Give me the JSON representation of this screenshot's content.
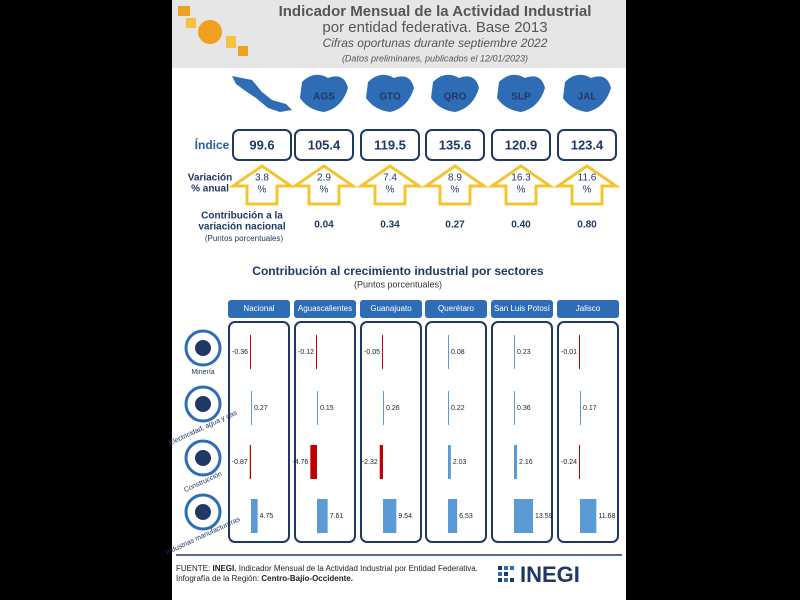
{
  "header": {
    "title_lines": [
      "Indicador Mensual de la Actividad Industrial",
      "por entidad federativa. Base 2013"
    ],
    "subtitle": "Cifras oportunas durante septiembre 2022",
    "note": "(Datos preliminares, publicados el 12/01/2023)"
  },
  "regions": [
    "AGS",
    "GTO",
    "QRO",
    "SLP",
    "JAL"
  ],
  "index": {
    "label": "Índice",
    "values": [
      99.6,
      105.4,
      119.5,
      135.6,
      120.9,
      123.4
    ]
  },
  "variation": {
    "label_lines": [
      "Variación",
      "% anual"
    ],
    "values": [
      3.8,
      2.9,
      7.4,
      8.9,
      16.3,
      11.6
    ],
    "unit": "%"
  },
  "contribution": {
    "label_lines": [
      "Contribución a la",
      "variación nacional"
    ],
    "sublabel": "(Puntos porcentuales)",
    "values": [
      "0.04",
      "0.34",
      "0.27",
      "0.40",
      "0.80"
    ]
  },
  "sectors_chart": {
    "title": "Contribución al crecimiento industrial por sectores",
    "subtitle": "(Puntos porcentuales)",
    "columns": [
      "Nacional",
      "Aguascalientes",
      "Guanajuato",
      "Querétaro",
      "San Luis Potosí",
      "Jalisco"
    ],
    "rows": [
      {
        "name": "Minería",
        "values": [
          -0.36,
          -0.12,
          -0.05,
          0.08,
          0.23,
          -0.01
        ]
      },
      {
        "name": "Electricidad, agua y gas",
        "values": [
          0.27,
          0.15,
          0.26,
          0.22,
          0.36,
          0.17
        ]
      },
      {
        "name": "Construcción",
        "values": [
          -0.87,
          -4.76,
          -2.32,
          2.03,
          2.16,
          -0.24
        ]
      },
      {
        "name": "Industrias manufactureras",
        "values": [
          4.75,
          7.61,
          9.54,
          6.53,
          13.59,
          11.68
        ]
      }
    ]
  },
  "footer": {
    "source_label": "FUENTE:",
    "source_org": "INEGI.",
    "source_text": "Indicador Mensual de la Actividad Industrial por Entidad Federativa.",
    "region_label": "Infografía de la Región:",
    "region_name": "Centro-Bajío-Occidente.",
    "logo": "INEGI"
  }
}
